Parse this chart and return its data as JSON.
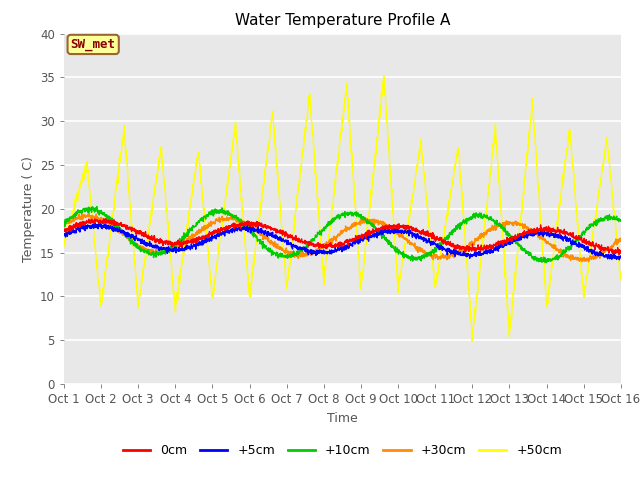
{
  "title": "Water Temperature Profile A",
  "xlabel": "Time",
  "ylabel": "Temperature ( C)",
  "annotation": "SW_met",
  "annotation_color": "#8B0000",
  "annotation_bg": "#FFFF99",
  "annotation_border": "#996633",
  "xlim": [
    0,
    15
  ],
  "ylim": [
    0,
    40
  ],
  "xtick_labels": [
    "Oct 1",
    "Oct 2",
    "Oct 3",
    "Oct 4",
    "Oct 5",
    "Oct 6",
    "Oct 7",
    "Oct 8",
    "Oct 9",
    "Oct 10",
    "Oct 11",
    "Oct 12",
    "Oct 13",
    "Oct 14",
    "Oct 15",
    "Oct 16"
  ],
  "ytick_values": [
    0,
    5,
    10,
    15,
    20,
    25,
    30,
    35,
    40
  ],
  "legend_entries": [
    "0cm",
    "+5cm",
    "+10cm",
    "+30cm",
    "+50cm"
  ],
  "line_colors": [
    "#FF0000",
    "#0000FF",
    "#00CC00",
    "#FF8C00",
    "#FFFF00"
  ],
  "bg_color": "#E8E8E8",
  "grid_color": "#FFFFFF",
  "title_fontsize": 11,
  "label_fontsize": 9,
  "tick_fontsize": 8.5,
  "axis_label_color": "#555555",
  "tick_color": "#555555",
  "figwidth": 6.4,
  "figheight": 4.8,
  "dpi": 100
}
